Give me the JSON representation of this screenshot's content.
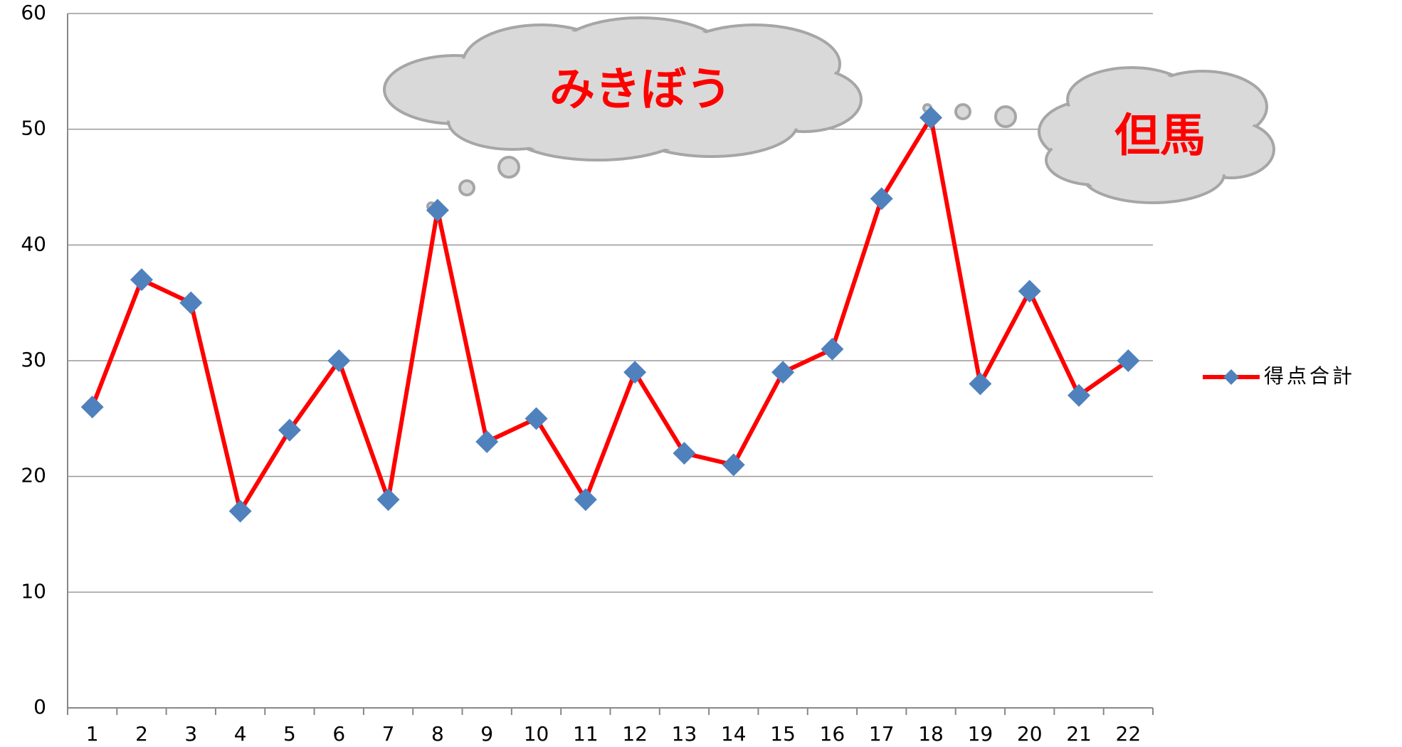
{
  "chart_data": {
    "type": "line",
    "categories": [
      "1",
      "2",
      "3",
      "4",
      "5",
      "6",
      "7",
      "8",
      "9",
      "10",
      "11",
      "12",
      "13",
      "14",
      "15",
      "16",
      "17",
      "18",
      "19",
      "20",
      "21",
      "22"
    ],
    "series": [
      {
        "name": "得点合計",
        "color": "#ff0000",
        "marker_color": "#4f81bd",
        "values": [
          26,
          37,
          35,
          17,
          24,
          30,
          18,
          43,
          23,
          25,
          18,
          29,
          22,
          21,
          29,
          31,
          44,
          51,
          28,
          36,
          27,
          30
        ]
      }
    ],
    "ylim": [
      0,
      60
    ],
    "yticks": [
      0,
      10,
      20,
      30,
      40,
      50,
      60
    ],
    "grid": true,
    "legend": "right",
    "annotations": [
      "みきぼう",
      "但馬"
    ]
  }
}
